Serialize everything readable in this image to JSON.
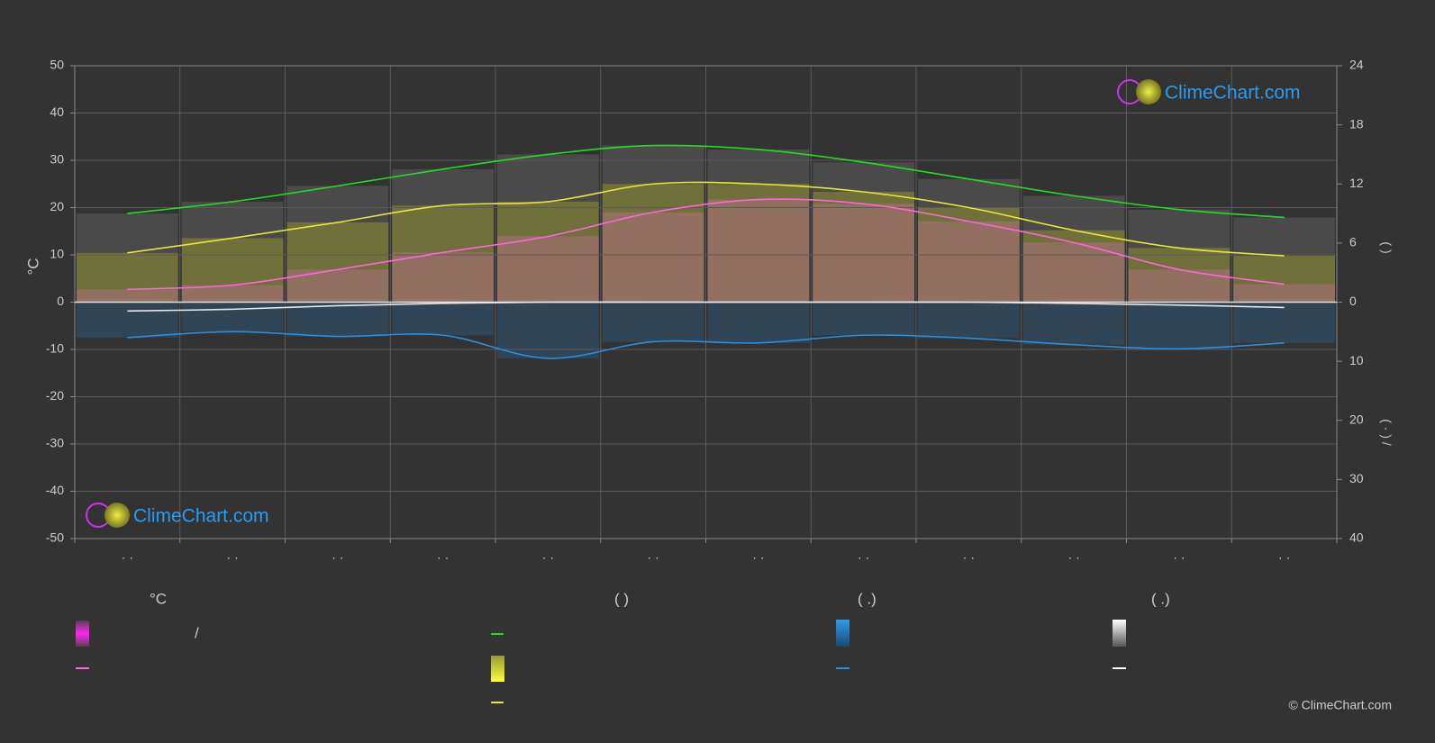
{
  "chart_data": {
    "type": "line",
    "y_label": "°C",
    "y2_label": "(     )",
    "y3_label": "(  ·  )    /",
    "categories": [
      "· ·",
      "· ·",
      "· ·",
      "· ·",
      "· ·",
      "· ·",
      "· ·",
      "· ·",
      "· ·",
      "· ·",
      "· ·",
      "· ·"
    ],
    "ylim": [
      -50,
      50
    ],
    "yticks": [
      -50,
      -40,
      -30,
      -20,
      -10,
      0,
      10,
      20,
      30,
      40,
      50
    ],
    "y2lim": [
      0,
      24
    ],
    "y2ticks": [
      0,
      6,
      12,
      18,
      24
    ],
    "y3lim": [
      0,
      40
    ],
    "y3ticks": [
      10,
      20,
      30,
      40
    ],
    "grid": true,
    "series": [
      {
        "color": "#22dd22",
        "axis": "y2",
        "values": [
          9.0,
          10.2,
          11.8,
          13.5,
          15.0,
          15.9,
          15.5,
          14.2,
          12.5,
          10.8,
          9.4,
          8.6
        ]
      },
      {
        "color": "#e6e63a",
        "axis": "y2",
        "values": [
          5.0,
          6.5,
          8.1,
          9.8,
          10.2,
          12.0,
          12.0,
          11.2,
          9.6,
          7.3,
          5.5,
          4.7
        ]
      },
      {
        "color": "#ff66dd",
        "values": [
          2.7,
          3.6,
          6.9,
          10.5,
          13.9,
          19.0,
          21.7,
          20.8,
          17.1,
          12.6,
          6.9,
          3.8
        ]
      },
      {
        "color": "#2a8fe0",
        "axis": "y3",
        "values": [
          6.0,
          5.0,
          5.8,
          5.6,
          9.5,
          6.7,
          6.9,
          5.6,
          6.1,
          7.2,
          7.9,
          6.9
        ]
      },
      {
        "color": "#e8e8e8",
        "axis": "y3",
        "values": [
          1.5,
          1.2,
          0.6,
          0.2,
          0,
          0,
          0,
          0,
          0,
          0.2,
          0.5,
          0.9
        ]
      }
    ]
  },
  "legend": {
    "headers": [
      "°C",
      "(          )",
      "(    .)",
      "(    .)"
    ],
    "slash": "/"
  },
  "watermark": "ClimeChart.com",
  "copyright": "© ClimeChart.com"
}
